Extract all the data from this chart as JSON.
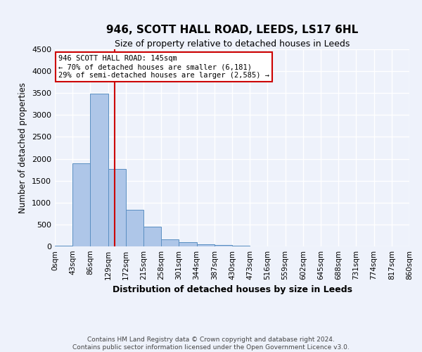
{
  "title": "946, SCOTT HALL ROAD, LEEDS, LS17 6HL",
  "subtitle": "Size of property relative to detached houses in Leeds",
  "xlabel": "Distribution of detached houses by size in Leeds",
  "ylabel": "Number of detached properties",
  "bin_labels": [
    "0sqm",
    "43sqm",
    "86sqm",
    "129sqm",
    "172sqm",
    "215sqm",
    "258sqm",
    "301sqm",
    "344sqm",
    "387sqm",
    "430sqm",
    "473sqm",
    "516sqm",
    "559sqm",
    "602sqm",
    "645sqm",
    "688sqm",
    "731sqm",
    "774sqm",
    "817sqm",
    "860sqm"
  ],
  "bar_values": [
    10,
    1900,
    3480,
    1760,
    840,
    455,
    155,
    95,
    50,
    30,
    15,
    8,
    5,
    4,
    3,
    2,
    2,
    1,
    1,
    1
  ],
  "bar_color": "#aec6e8",
  "bar_edgecolor": "#5a8fc2",
  "vline_x": 145,
  "vline_color": "#cc0000",
  "annotation_text": "946 SCOTT HALL ROAD: 145sqm\n← 70% of detached houses are smaller (6,181)\n29% of semi-detached houses are larger (2,585) →",
  "annotation_box_color": "#cc0000",
  "ylim": [
    0,
    4500
  ],
  "yticks": [
    0,
    500,
    1000,
    1500,
    2000,
    2500,
    3000,
    3500,
    4000,
    4500
  ],
  "background_color": "#eef2fb",
  "grid_color": "#ffffff",
  "footer_line1": "Contains HM Land Registry data © Crown copyright and database right 2024.",
  "footer_line2": "Contains public sector information licensed under the Open Government Licence v3.0.",
  "bin_edges": [
    0,
    43,
    86,
    129,
    172,
    215,
    258,
    301,
    344,
    387,
    430,
    473,
    516,
    559,
    602,
    645,
    688,
    731,
    774,
    817,
    860
  ],
  "bin_width": 43
}
